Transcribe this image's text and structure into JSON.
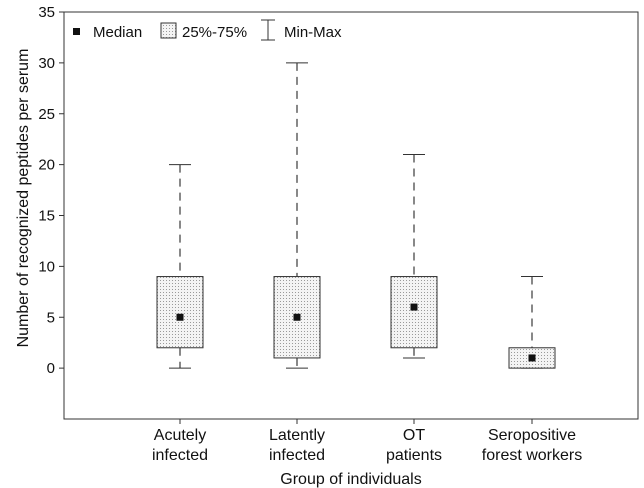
{
  "chart_data": {
    "type": "boxplot",
    "title": "",
    "xlabel": "Group of individuals",
    "ylabel": "Number of recognized peptides per serum",
    "ylim": [
      -5,
      35
    ],
    "yticks": [
      0,
      5,
      10,
      15,
      20,
      25,
      30,
      35
    ],
    "grid": false,
    "legend": {
      "placement": "top-left",
      "entries": [
        {
          "label": "Median",
          "symbol": "square"
        },
        {
          "label": "25%-75%",
          "symbol": "box"
        },
        {
          "label": "Min-Max",
          "symbol": "whisker"
        }
      ]
    },
    "categories": [
      {
        "label_lines": [
          "Acutely",
          "infected"
        ],
        "min": 0,
        "q1": 2,
        "median": 5,
        "q3": 9,
        "max": 20
      },
      {
        "label_lines": [
          "Latently",
          "infected"
        ],
        "min": 0,
        "q1": 1,
        "median": 5,
        "q3": 9,
        "max": 30
      },
      {
        "label_lines": [
          "OT",
          "patients"
        ],
        "min": 1,
        "q1": 2,
        "median": 6,
        "q3": 9,
        "max": 21
      },
      {
        "label_lines": [
          "Seropositive",
          "forest workers"
        ],
        "min": 0,
        "q1": 0,
        "median": 1,
        "q3": 2,
        "max": 9
      }
    ]
  }
}
